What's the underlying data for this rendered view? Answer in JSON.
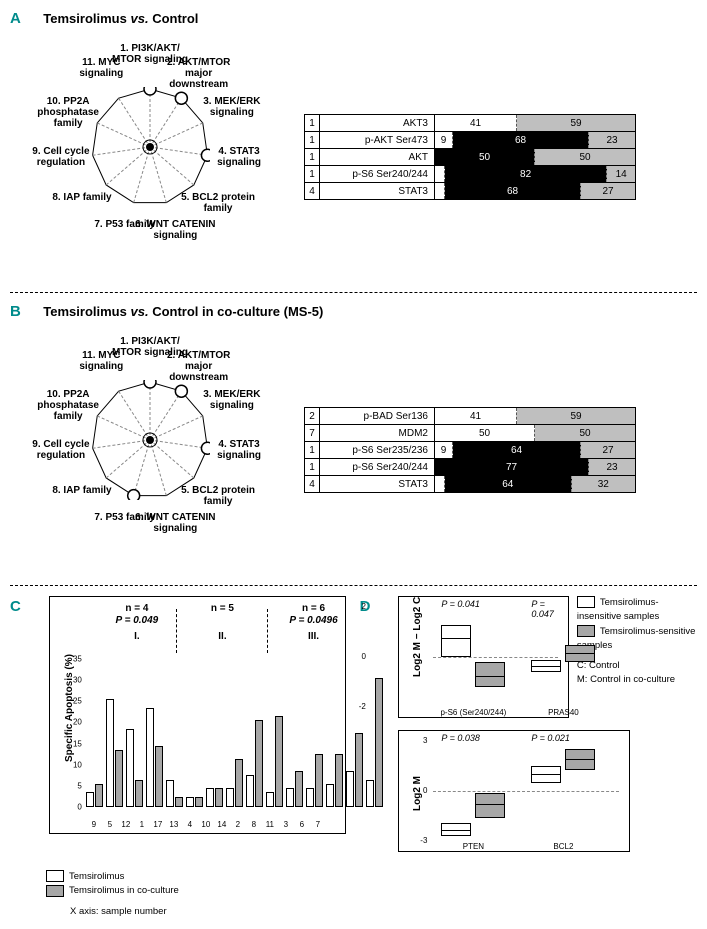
{
  "radar_vertices": [
    "1. PI3K/AKT/\nMTOR signaling",
    "2. AKT/MTOR\nmajor\ndownstream",
    "3. MEK/ERK\nsignaling",
    "4. STAT3\nsignaling",
    "5. BCL2 protein\nfamily",
    "6. WNT CATENIN\nsignaling",
    "7. P53 family",
    "8. IAP family",
    "9. Cell cycle\nregulation",
    "10. PP2A\nphosphatase\nfamily",
    "11. MYC\nsignaling"
  ],
  "panel_a": {
    "label": "A",
    "title_a": "Temsirolimus",
    "title_vs": "vs.",
    "title_b": "Control",
    "highlights": [
      0,
      1,
      3
    ],
    "table": [
      {
        "n": "1",
        "label": "AKT3",
        "segs": [
          {
            "v": 41,
            "c": "white"
          },
          {
            "v": 59,
            "c": "grey"
          }
        ]
      },
      {
        "n": "1",
        "label": "p-AKT Ser473",
        "segs": [
          {
            "v": 9,
            "c": "white"
          },
          {
            "v": 68,
            "c": "black"
          },
          {
            "v": 23,
            "c": "grey"
          }
        ]
      },
      {
        "n": "1",
        "label": "AKT",
        "segs": [
          {
            "v": 50,
            "c": "black"
          },
          {
            "v": 50,
            "c": "grey"
          }
        ]
      },
      {
        "n": "1",
        "label": "p-S6 Ser240/244",
        "segs": [
          {
            "v": 5,
            "c": "white",
            "show": false
          },
          {
            "v": 82,
            "c": "black"
          },
          {
            "v": 14,
            "c": "grey"
          }
        ]
      },
      {
        "n": "4",
        "label": "STAT3",
        "segs": [
          {
            "v": 5,
            "c": "white",
            "show": false
          },
          {
            "v": 68,
            "c": "black"
          },
          {
            "v": 27,
            "c": "grey"
          }
        ]
      }
    ]
  },
  "panel_b": {
    "label": "B",
    "title_a": "Temsirolimus",
    "title_vs": "vs.",
    "title_b": "Control in co-culture (MS-5)",
    "highlights": [
      0,
      1,
      3,
      6
    ],
    "table": [
      {
        "n": "2",
        "label": "p-BAD Ser136",
        "segs": [
          {
            "v": 41,
            "c": "white"
          },
          {
            "v": 59,
            "c": "grey"
          }
        ]
      },
      {
        "n": "7",
        "label": "MDM2",
        "segs": [
          {
            "v": 50,
            "c": "white"
          },
          {
            "v": 50,
            "c": "grey"
          }
        ]
      },
      {
        "n": "1",
        "label": "p-S6 Ser235/236",
        "segs": [
          {
            "v": 9,
            "c": "white"
          },
          {
            "v": 64,
            "c": "black"
          },
          {
            "v": 27,
            "c": "grey"
          }
        ]
      },
      {
        "n": "1",
        "label": "p-S6 Ser240/244",
        "segs": [
          {
            "v": 77,
            "c": "black"
          },
          {
            "v": 23,
            "c": "grey"
          }
        ]
      },
      {
        "n": "4",
        "label": "STAT3",
        "segs": [
          {
            "v": 5,
            "c": "white",
            "show": false
          },
          {
            "v": 64,
            "c": "black"
          },
          {
            "v": 32,
            "c": "grey"
          }
        ]
      }
    ]
  },
  "panel_c": {
    "label": "C",
    "y_title": "Specific Apoptosis (%)",
    "ymax": 35,
    "yticks": [
      0,
      5,
      10,
      15,
      20,
      25,
      30,
      35
    ],
    "groups": [
      {
        "hdr_n": "n = 4",
        "hdr_p": "P = 0.049",
        "roman": "I.",
        "samples": [
          9,
          5,
          12,
          1
        ],
        "left_pct": 6,
        "width_pct": 25
      },
      {
        "hdr_n": "n = 5",
        "hdr_p": "",
        "roman": "II.",
        "samples": [
          17,
          13,
          4,
          10,
          14
        ],
        "left_pct": 34,
        "width_pct": 31
      },
      {
        "hdr_n": "n = 6",
        "hdr_p": "P = 0.0496",
        "roman": "III.",
        "samples": [
          2,
          8,
          11,
          3,
          6,
          7
        ],
        "left_pct": 67,
        "width_pct": 31
      }
    ],
    "bars": [
      {
        "s": 9,
        "w": 3,
        "g": 5
      },
      {
        "s": 5,
        "w": 25,
        "g": 13
      },
      {
        "s": 12,
        "w": 18,
        "g": 6
      },
      {
        "s": 1,
        "w": 23,
        "g": 14
      },
      {
        "s": 17,
        "w": 6,
        "g": 2
      },
      {
        "s": 13,
        "w": 2,
        "g": 2
      },
      {
        "s": 4,
        "w": 4,
        "g": 4
      },
      {
        "s": 10,
        "w": 4,
        "g": 11
      },
      {
        "s": 14,
        "w": 7,
        "g": 20
      },
      {
        "s": 2,
        "w": 3,
        "g": 21
      },
      {
        "s": 8,
        "w": 4,
        "g": 8
      },
      {
        "s": 11,
        "w": 4,
        "g": 12
      },
      {
        "s": 3,
        "w": 5,
        "g": 12
      },
      {
        "s": 6,
        "w": 8,
        "g": 17
      },
      {
        "s": 7,
        "w": 6,
        "g": 30
      }
    ],
    "legend": {
      "white": "Temsirolimus",
      "grey": "Temsirolimus in co-culture"
    },
    "x_note": "X axis: sample number"
  },
  "panel_d": {
    "label": "D",
    "chart1": {
      "ylab": "Log2 M − Log2 C",
      "xs": [
        "p-S6 (Ser240/244)",
        "PRAS40"
      ],
      "p": [
        "P = 0.041",
        "P = 0.047"
      ],
      "yrange": [
        -2,
        2
      ],
      "pairs": [
        {
          "w": {
            "q1": 0.1,
            "med": 0.8,
            "q3": 1.3,
            "lo": -0.3,
            "hi": 1.6
          },
          "g": {
            "q1": -1.1,
            "med": -0.7,
            "q3": -0.2,
            "lo": -1.5,
            "hi": 0.1
          }
        },
        {
          "w": {
            "q1": -0.5,
            "med": -0.3,
            "q3": -0.1,
            "lo": -0.7,
            "hi": 0.0
          },
          "g": {
            "q1": -0.1,
            "med": 0.2,
            "q3": 0.5,
            "lo": -0.3,
            "hi": 0.8
          }
        }
      ]
    },
    "chart2": {
      "ylab": "Log2 M",
      "xs": [
        "PTEN",
        "BCL2"
      ],
      "p": [
        "P = 0.038",
        "P = 0.021"
      ],
      "yrange": [
        -3,
        3
      ],
      "pairs": [
        {
          "w": {
            "q1": -2.6,
            "med": -2.3,
            "q3": -1.9,
            "lo": -2.9,
            "hi": -1.6
          },
          "g": {
            "q1": -1.5,
            "med": -0.7,
            "q3": -0.1,
            "lo": -1.9,
            "hi": 0.2
          }
        },
        {
          "w": {
            "q1": 0.6,
            "med": 1.1,
            "q3": 1.5,
            "lo": 0.3,
            "hi": 1.8
          },
          "g": {
            "q1": 1.4,
            "med": 2.0,
            "q3": 2.5,
            "lo": 1.1,
            "hi": 2.8
          }
        }
      ]
    },
    "legend": {
      "white": "Temsirolimus-insensitive samples",
      "grey": "Temsirolimus-sensitive samples",
      "c": "C: Control",
      "m": "M: Control in co-culture"
    }
  }
}
